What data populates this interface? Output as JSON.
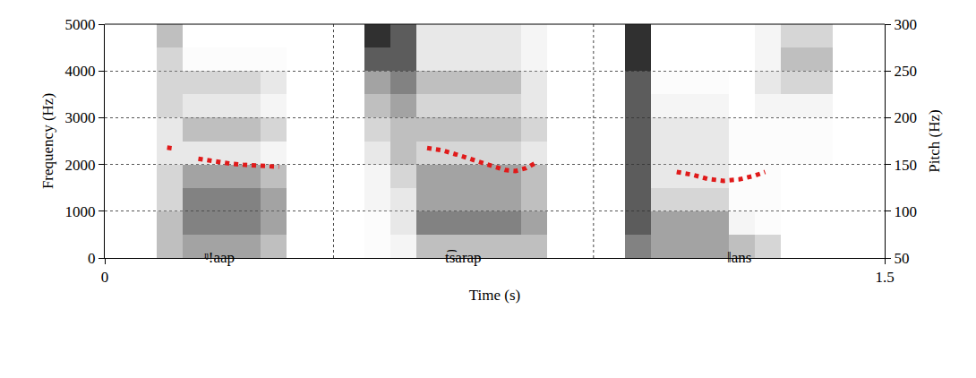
{
  "chart_data": {
    "type": "spectrogram",
    "xlabel": "Time (s)",
    "ylabel": "Frequency (Hz)",
    "y2label": "Pitch (Hz)",
    "xlim": [
      0,
      1.5
    ],
    "xticks": [
      0,
      1.5
    ],
    "ylim": [
      0,
      5000
    ],
    "yticks": [
      0,
      1000,
      2000,
      3000,
      4000,
      5000
    ],
    "y2lim": [
      50,
      300
    ],
    "y2ticks": [
      50,
      100,
      150,
      200,
      250,
      300
    ],
    "grid": true,
    "spectrogram": {
      "x": [
        0.025,
        0.075,
        0.125,
        0.175,
        0.225,
        0.275,
        0.325,
        0.375,
        0.425,
        0.475,
        0.525,
        0.575,
        0.625,
        0.675,
        0.725,
        0.775,
        0.825,
        0.875,
        0.925,
        0.975,
        1.025,
        1.075,
        1.125,
        1.175,
        1.225,
        1.275,
        1.325,
        1.375,
        1.425,
        1.475
      ],
      "y": [
        250,
        750,
        1250,
        1750,
        2250,
        2750,
        3250,
        3750,
        4250,
        4750
      ],
      "zlim": [
        0,
        1
      ],
      "z": [
        [
          0,
          0,
          0.5,
          0.6,
          0.6,
          0.6,
          0.5,
          0,
          0,
          0,
          0.1,
          0.2,
          0.5,
          0.5,
          0.5,
          0.5,
          0.5,
          0,
          0,
          0,
          0.7,
          0.6,
          0.6,
          0.6,
          0.5,
          0.4,
          0,
          0,
          0,
          0
        ],
        [
          0,
          0,
          0.5,
          0.7,
          0.7,
          0.7,
          0.6,
          0,
          0,
          0,
          0.1,
          0.3,
          0.7,
          0.7,
          0.7,
          0.7,
          0.6,
          0,
          0,
          0,
          0.8,
          0.6,
          0.6,
          0.6,
          0.2,
          0.1,
          0,
          0,
          0,
          0
        ],
        [
          0,
          0,
          0.4,
          0.7,
          0.7,
          0.7,
          0.6,
          0,
          0,
          0,
          0.2,
          0.3,
          0.6,
          0.6,
          0.6,
          0.6,
          0.5,
          0,
          0,
          0,
          0.8,
          0.4,
          0.4,
          0.4,
          0.1,
          0.1,
          0,
          0,
          0,
          0
        ],
        [
          0,
          0,
          0.4,
          0.6,
          0.6,
          0.6,
          0.5,
          0,
          0,
          0,
          0.2,
          0.4,
          0.6,
          0.6,
          0.6,
          0.6,
          0.5,
          0,
          0,
          0,
          0.8,
          0.3,
          0.3,
          0.3,
          0.1,
          0.1,
          0,
          0,
          0,
          0
        ],
        [
          0,
          0,
          0.3,
          0.3,
          0.3,
          0.3,
          0.2,
          0,
          0,
          0,
          0.3,
          0.5,
          0.4,
          0.4,
          0.4,
          0.4,
          0.3,
          0,
          0,
          0,
          0.8,
          0.3,
          0.3,
          0.3,
          0.1,
          0.1,
          0.1,
          0.1,
          0,
          0
        ],
        [
          0,
          0,
          0.3,
          0.5,
          0.5,
          0.5,
          0.4,
          0,
          0,
          0,
          0.4,
          0.5,
          0.5,
          0.5,
          0.5,
          0.5,
          0.4,
          0,
          0,
          0,
          0.8,
          0.3,
          0.3,
          0.3,
          0.1,
          0.1,
          0.1,
          0.1,
          0,
          0
        ],
        [
          0,
          0,
          0.4,
          0.3,
          0.3,
          0.3,
          0.2,
          0,
          0,
          0,
          0.5,
          0.6,
          0.4,
          0.4,
          0.4,
          0.4,
          0.3,
          0,
          0,
          0,
          0.8,
          0.2,
          0.2,
          0.2,
          0,
          0.2,
          0.2,
          0.2,
          0,
          0
        ],
        [
          0,
          0,
          0.4,
          0.4,
          0.4,
          0.4,
          0.3,
          0,
          0,
          0,
          0.6,
          0.7,
          0.5,
          0.5,
          0.5,
          0.5,
          0.3,
          0,
          0,
          0,
          0.8,
          0.1,
          0.1,
          0.1,
          0,
          0.3,
          0.4,
          0.4,
          0,
          0
        ],
        [
          0,
          0,
          0.4,
          0.1,
          0.1,
          0.1,
          0.1,
          0,
          0,
          0,
          0.8,
          0.8,
          0.3,
          0.3,
          0.3,
          0.3,
          0.2,
          0,
          0,
          0,
          0.9,
          0,
          0,
          0,
          0,
          0.2,
          0.5,
          0.5,
          0,
          0
        ],
        [
          0,
          0,
          0.5,
          0,
          0,
          0,
          0,
          0,
          0,
          0,
          0.9,
          0.8,
          0.3,
          0.3,
          0.3,
          0.3,
          0.2,
          0,
          0,
          0,
          0.9,
          0,
          0,
          0,
          0,
          0.2,
          0.4,
          0.4,
          0,
          0
        ]
      ]
    },
    "series": [
      {
        "color": "#e01a1a",
        "line_style": "dotted",
        "axis": "y2",
        "x": [
          0.12,
          0.133,
          0.16,
          0.18,
          0.21,
          0.24,
          0.27,
          0.3,
          0.335,
          0.45,
          0.62,
          0.65,
          0.68,
          0.71,
          0.74,
          0.77,
          0.79,
          0.81,
          0.83,
          0.95,
          1.1,
          1.13,
          1.16,
          1.19,
          1.22,
          1.25,
          1.27
        ],
        "values": [
          168,
          167,
          null,
          156,
          153,
          151,
          149.5,
          148.5,
          147.5,
          null,
          167.5,
          165,
          160,
          155,
          149,
          144,
          143,
          146,
          152,
          null,
          142,
          139,
          134.5,
          132.5,
          134,
          138,
          142
        ]
      }
    ],
    "tier": {
      "intervals": [
        {
          "start": 0,
          "end": 0.44,
          "label": "ᵑ!aap"
        },
        {
          "start": 0.44,
          "end": 0.94,
          "label": "t͡sarap"
        },
        {
          "start": 0.94,
          "end": 1.5,
          "label": "ǁans"
        }
      ]
    }
  }
}
